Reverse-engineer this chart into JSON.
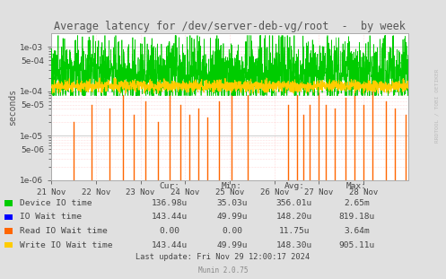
{
  "title": "Average latency for /dev/server-deb-vg/root  -  by week",
  "ylabel": "seconds",
  "bg_color": "#e0e0e0",
  "plot_bg_color": "#ffffff",
  "xticklabels": [
    "21 Nov",
    "22 Nov",
    "23 Nov",
    "24 Nov",
    "25 Nov",
    "26 Nov",
    "27 Nov",
    "28 Nov"
  ],
  "ylim_low": 1e-06,
  "ylim_high": 0.002,
  "legend_entries": [
    {
      "label": "Device IO time",
      "color": "#00cc00"
    },
    {
      "label": "IO Wait time",
      "color": "#0000ff"
    },
    {
      "label": "Read IO Wait time",
      "color": "#ff6600"
    },
    {
      "label": "Write IO Wait time",
      "color": "#ffcc00"
    }
  ],
  "col_headers": [
    "Cur:",
    "Min:",
    "Avg:",
    "Max:"
  ],
  "table_values": [
    [
      "136.98u",
      "35.03u",
      "356.01u",
      "2.65m"
    ],
    [
      "143.44u",
      "49.99u",
      "148.20u",
      "819.18u"
    ],
    [
      "0.00",
      "0.00",
      "11.75u",
      "3.64m"
    ],
    [
      "143.44u",
      "49.99u",
      "148.30u",
      "905.11u"
    ]
  ],
  "last_update": "Last update: Fri Nov 29 12:00:17 2024",
  "munin_version": "Munin 2.0.75",
  "rrdtool_text": "RRDTOOL / TOBI OETIKER"
}
